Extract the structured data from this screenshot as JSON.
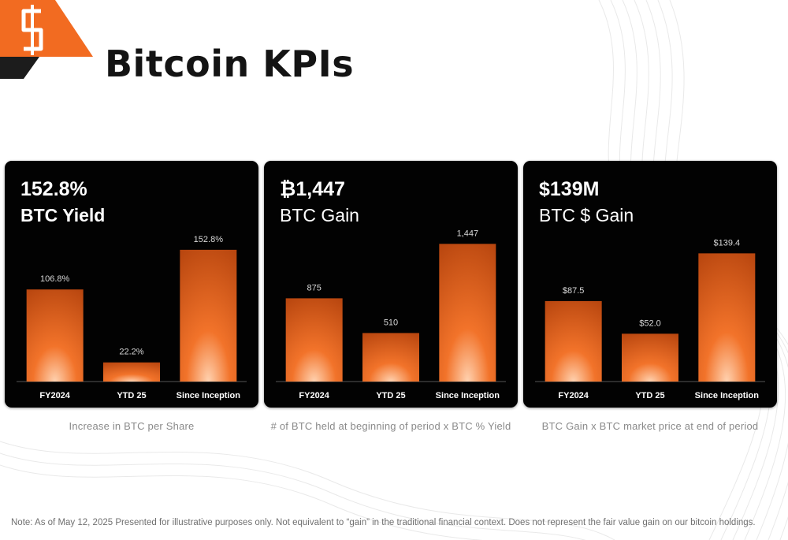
{
  "title": "Bitcoin KPIs",
  "brand": {
    "accent": "#f26b21",
    "dark": "#1c1c1c"
  },
  "cards": [
    {
      "headline": "152.8%",
      "subhead": "BTC Yield",
      "caption": "Increase in BTC per Share"
    },
    {
      "headline": "₿1,447",
      "subhead": "BTC Gain",
      "caption": "# of BTC held at beginning of period x BTC % Yield"
    },
    {
      "headline": "$139M",
      "subhead": "BTC $ Gain",
      "caption": "BTC Gain x BTC market price at end of period"
    }
  ],
  "chart_data": [
    {
      "type": "bar",
      "categories": [
        "FY2024",
        "YTD 25",
        "Since Inception"
      ],
      "values": [
        106.8,
        22.2,
        152.8
      ],
      "labels": [
        "106.8%",
        "22.2%",
        "152.8%"
      ],
      "ylim": [
        0,
        160
      ],
      "bar_color": "#f2732a"
    },
    {
      "type": "bar",
      "categories": [
        "FY2024",
        "YTD 25",
        "Since Inception"
      ],
      "values": [
        875,
        510,
        1447
      ],
      "labels": [
        "875",
        "510",
        "1,447"
      ],
      "ylim": [
        0,
        1450
      ],
      "bar_color": "#f2732a"
    },
    {
      "type": "bar",
      "categories": [
        "FY2024",
        "YTD 25",
        "Since Inception"
      ],
      "values": [
        87.5,
        52.0,
        139.4
      ],
      "labels": [
        "$87.5",
        "$52.0",
        "$139.4"
      ],
      "ylim": [
        0,
        150
      ],
      "bar_color": "#f2732a"
    }
  ],
  "note": "Note: As of May 12, 2025  Presented for illustrative purposes only. Not equivalent to “gain” in the traditional financial context. Does not represent the fair value gain on our bitcoin holdings."
}
